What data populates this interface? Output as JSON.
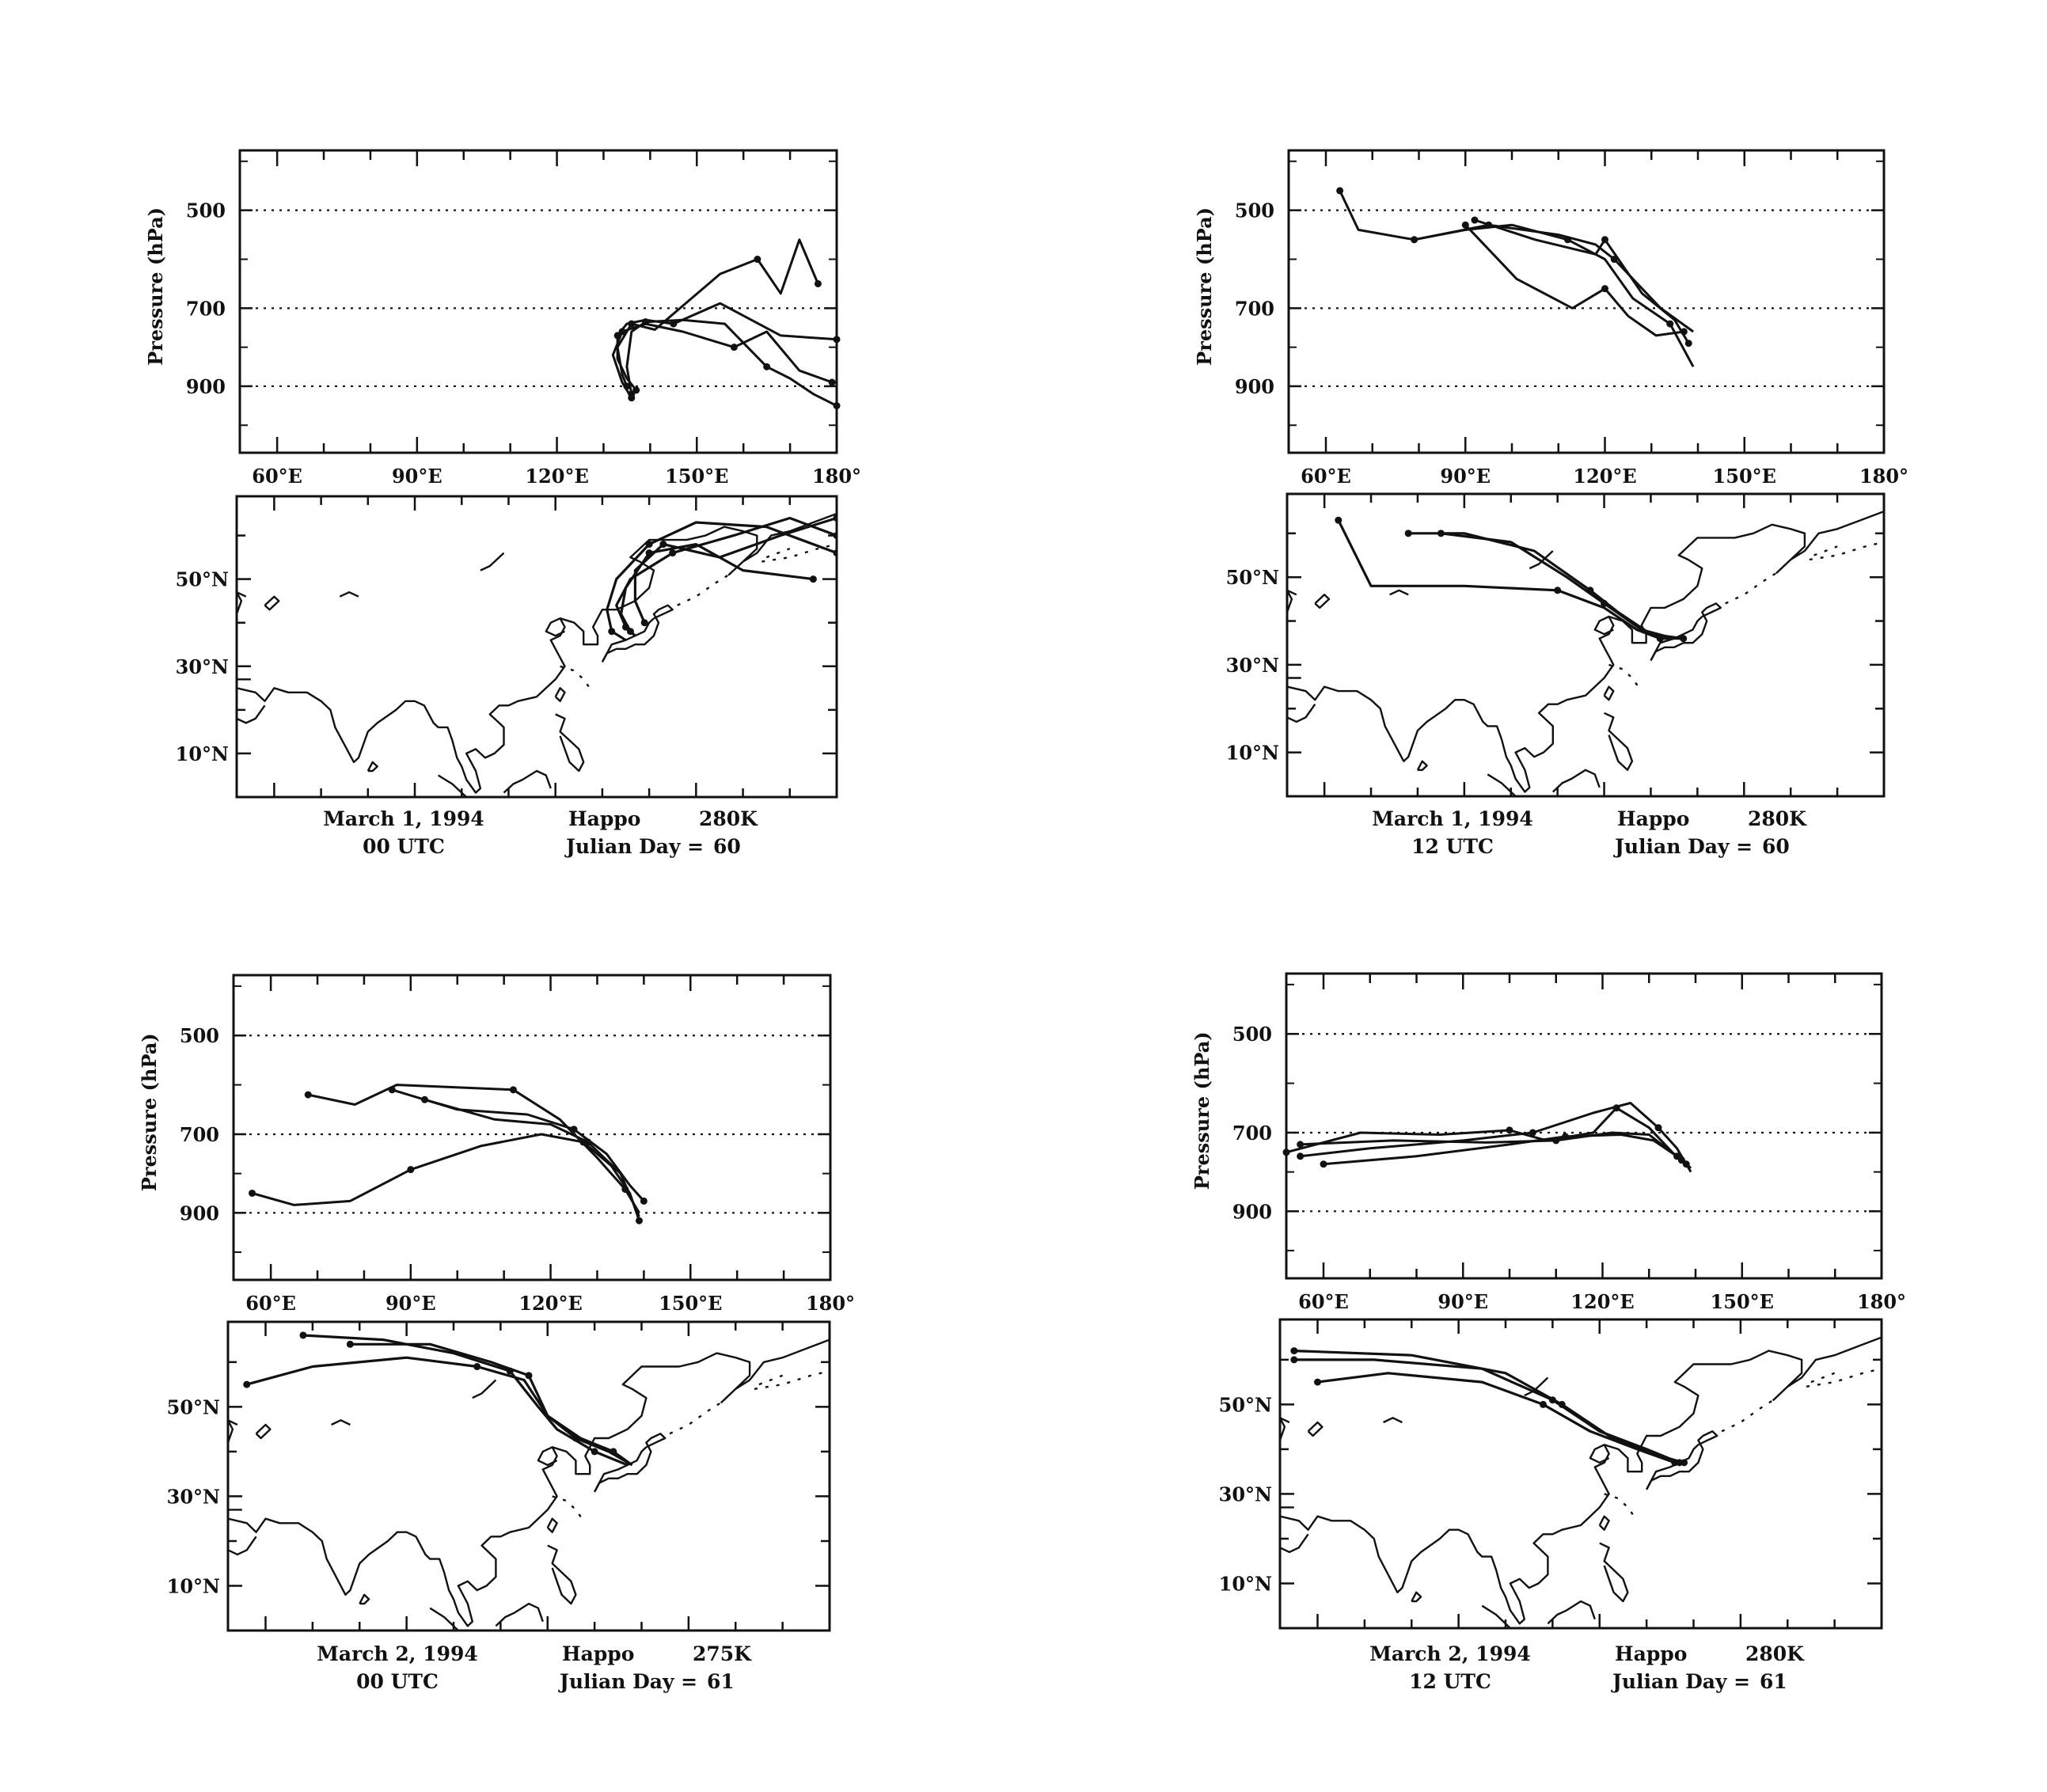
{
  "chart_data": [
    {
      "type": "line",
      "panel": "top-left",
      "title": "",
      "ylabel": "Pressure (hPa)",
      "ytick_labels": [
        "500",
        "700",
        "900"
      ],
      "ylim": [
        1000,
        350
      ],
      "xtick_labels": [
        "60°E",
        "90°E",
        "120°E",
        "150°E",
        "180°"
      ],
      "map_lat_labels": [
        "50°N",
        "30°N",
        "10°N"
      ],
      "caption_line1": [
        "March 1, 1994",
        "Happo",
        "280K"
      ],
      "caption_line2": [
        "00 UTC",
        "Julian Day =",
        "60"
      ],
      "cross_section_series": [
        {
          "lon": [
            180,
            168,
            155,
            145,
            139,
            135,
            133,
            133,
            135,
            137
          ],
          "p": [
            780,
            770,
            690,
            740,
            730,
            740,
            770,
            830,
            880,
            910
          ]
        },
        {
          "lon": [
            179,
            172,
            165,
            158,
            147,
            139,
            134,
            132,
            134,
            136
          ],
          "p": [
            890,
            860,
            760,
            800,
            760,
            740,
            760,
            820,
            890,
            930
          ]
        },
        {
          "lon": [
            176,
            172,
            168,
            163,
            155,
            141,
            136,
            133,
            134,
            135
          ],
          "p": [
            650,
            560,
            670,
            600,
            630,
            755,
            740,
            800,
            870,
            900
          ]
        },
        {
          "lon": [
            180,
            175,
            170,
            165,
            156,
            147,
            139,
            136,
            135,
            136
          ],
          "p": [
            950,
            920,
            880,
            850,
            740,
            730,
            735,
            760,
            850,
            920
          ]
        }
      ],
      "map_series": [
        {
          "lon": [
            180,
            165,
            150,
            140,
            133,
            131,
            132,
            135
          ],
          "lat": [
            56,
            62,
            63,
            58,
            50,
            43,
            38,
            36
          ]
        },
        {
          "lon": [
            180,
            170,
            158,
            145,
            136,
            133,
            135,
            137
          ],
          "lat": [
            60,
            64,
            60,
            56,
            50,
            44,
            39,
            37
          ]
        },
        {
          "lon": [
            175,
            160,
            150,
            140,
            135,
            134,
            136
          ],
          "lat": [
            50,
            52,
            58,
            56,
            48,
            42,
            38
          ]
        },
        {
          "lon": [
            180,
            168,
            155,
            143,
            137,
            137,
            139
          ],
          "lat": [
            64,
            60,
            55,
            58,
            52,
            45,
            40
          ]
        }
      ]
    },
    {
      "type": "line",
      "panel": "top-right",
      "title": "",
      "ylabel": "Pressure (hPa)",
      "ytick_labels": [
        "500",
        "700",
        "900"
      ],
      "ylim": [
        1000,
        350
      ],
      "xtick_labels": [
        "60°E",
        "90°E",
        "120°E",
        "150°E",
        "180°"
      ],
      "map_lat_labels": [
        "50°N",
        "30°N",
        "10°N"
      ],
      "caption_line1": [
        "March 1, 1994",
        "Happo",
        "280K"
      ],
      "caption_line2": [
        "12 UTC",
        "Julian Day =",
        "60"
      ],
      "cross_section_series": [
        {
          "lon": [
            63,
            67,
            79,
            95,
            110,
            118,
            122,
            132,
            139
          ],
          "p": [
            460,
            540,
            560,
            530,
            550,
            570,
            600,
            700,
            760
          ]
        },
        {
          "lon": [
            79,
            90,
            100,
            112,
            120,
            126,
            134,
            139
          ],
          "p": [
            560,
            540,
            530,
            560,
            600,
            680,
            740,
            850
          ]
        },
        {
          "lon": [
            90,
            101,
            113,
            120,
            125,
            131,
            137
          ],
          "p": [
            530,
            640,
            700,
            660,
            720,
            770,
            760
          ]
        },
        {
          "lon": [
            92,
            105,
            118,
            120,
            128,
            135,
            138
          ],
          "p": [
            520,
            560,
            590,
            560,
            670,
            730,
            790
          ]
        }
      ],
      "map_series": [
        {
          "lon": [
            63,
            70,
            90,
            110,
            120,
            127,
            132,
            137
          ],
          "lat": [
            63,
            48,
            48,
            47,
            43,
            38,
            36,
            36
          ]
        },
        {
          "lon": [
            78,
            90,
            105,
            117,
            123,
            130,
            137
          ],
          "lat": [
            60,
            60,
            56,
            47,
            42,
            37,
            36
          ]
        },
        {
          "lon": [
            85,
            100,
            112,
            120,
            128,
            135
          ],
          "lat": [
            60,
            58,
            50,
            44,
            38,
            36
          ]
        }
      ]
    },
    {
      "type": "line",
      "panel": "bottom-left",
      "title": "",
      "ylabel": "Pressure (hPa)",
      "ytick_labels": [
        "500",
        "700",
        "900"
      ],
      "ylim": [
        1000,
        350
      ],
      "xtick_labels": [
        "60°E",
        "90°E",
        "120°E",
        "150°E",
        "180°"
      ],
      "map_lat_labels": [
        "50°N",
        "30°N",
        "10°N"
      ],
      "caption_line1": [
        "March 2, 1994",
        "Happo",
        "275K"
      ],
      "caption_line2": [
        "00 UTC",
        "Julian Day =",
        "61"
      ],
      "cross_section_series": [
        {
          "lon": [
            56,
            65,
            77,
            90,
            105,
            118,
            127,
            133,
            137,
            139
          ],
          "p": [
            850,
            880,
            870,
            790,
            730,
            700,
            720,
            780,
            850,
            920
          ]
        },
        {
          "lon": [
            68,
            78,
            87,
            112,
            122,
            130,
            136,
            139
          ],
          "p": [
            620,
            640,
            600,
            610,
            670,
            760,
            840,
            900
          ]
        },
        {
          "lon": [
            86,
            100,
            115,
            125,
            132,
            137,
            140
          ],
          "p": [
            610,
            650,
            660,
            690,
            750,
            830,
            870
          ]
        },
        {
          "lon": [
            93,
            108,
            120,
            128,
            135,
            139
          ],
          "p": [
            630,
            670,
            680,
            720,
            800,
            910
          ]
        }
      ],
      "map_series": [
        {
          "lon": [
            56,
            70,
            90,
            105,
            115,
            120,
            126,
            133,
            138
          ],
          "lat": [
            55,
            59,
            61,
            59,
            56,
            48,
            43,
            40,
            37
          ]
        },
        {
          "lon": [
            78,
            95,
            108,
            116,
            120,
            127,
            134,
            138
          ],
          "lat": [
            64,
            64,
            60,
            57,
            48,
            43,
            40,
            37
          ]
        },
        {
          "lon": [
            68,
            85,
            100,
            112,
            118,
            122,
            130,
            137
          ],
          "lat": [
            66,
            65,
            62,
            58,
            50,
            45,
            40,
            37
          ]
        }
      ]
    },
    {
      "type": "line",
      "panel": "bottom-right",
      "title": "",
      "ylabel": "Pressure (hPa)",
      "ytick_labels": [
        "500",
        "700",
        "900"
      ],
      "ylim": [
        1000,
        350
      ],
      "xtick_labels": [
        "60°E",
        "90°E",
        "120°E",
        "150°E",
        "180°"
      ],
      "map_lat_labels": [
        "50°N",
        "30°N",
        "10°N"
      ],
      "caption_line1": [
        "March 2, 1994",
        "Happo",
        "280K"
      ],
      "caption_line2": [
        "12 UTC",
        "Julian Day =",
        "61"
      ],
      "cross_section_series": [
        {
          "lon": [
            52,
            68,
            85,
            100,
            108,
            118,
            123,
            130,
            135,
            138
          ],
          "p": [
            750,
            700,
            705,
            695,
            720,
            700,
            650,
            690,
            750,
            780
          ]
        },
        {
          "lon": [
            55,
            70,
            90,
            105,
            118,
            126,
            132,
            136,
            139
          ],
          "p": [
            760,
            740,
            720,
            700,
            660,
            640,
            690,
            740,
            800
          ]
        },
        {
          "lon": [
            60,
            80,
            100,
            112,
            124,
            131,
            136,
            139
          ],
          "p": [
            780,
            760,
            730,
            710,
            705,
            720,
            760,
            790
          ]
        },
        {
          "lon": [
            55,
            75,
            95,
            110,
            122,
            130,
            137
          ],
          "p": [
            730,
            720,
            725,
            720,
            700,
            705,
            770
          ]
        }
      ],
      "map_series": [
        {
          "lon": [
            60,
            75,
            95,
            108,
            118,
            128,
            136
          ],
          "lat": [
            55,
            57,
            55,
            50,
            44,
            40,
            37
          ]
        },
        {
          "lon": [
            55,
            72,
            95,
            110,
            120,
            130,
            137
          ],
          "lat": [
            60,
            60,
            58,
            51,
            44,
            40,
            37
          ]
        },
        {
          "lon": [
            55,
            80,
            100,
            112,
            122,
            131,
            138
          ],
          "lat": [
            62,
            61,
            57,
            50,
            43,
            39,
            37
          ]
        }
      ]
    }
  ]
}
